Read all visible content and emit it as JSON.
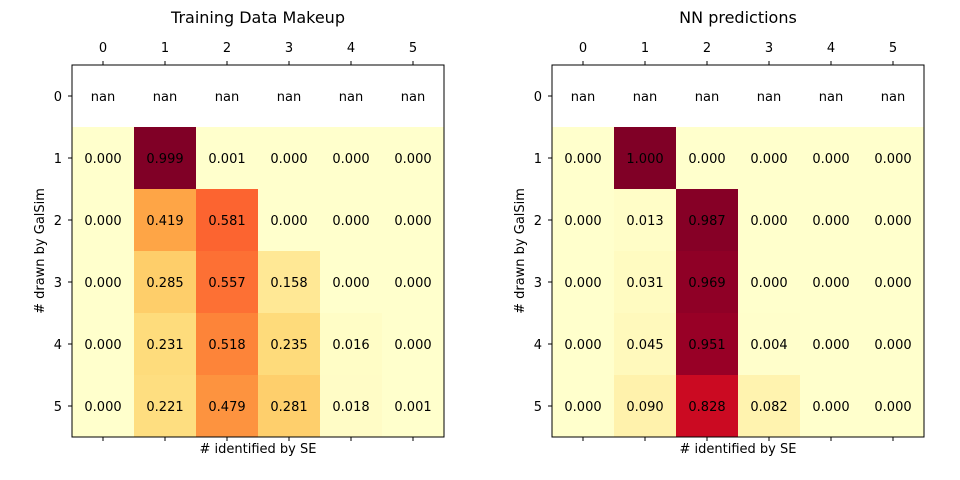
{
  "chart_data": [
    {
      "type": "heatmap",
      "title": "Training Data Makeup",
      "xlabel": "# identified by SE",
      "ylabel": "# drawn by GalSim",
      "x_ticks": [
        "0",
        "1",
        "2",
        "3",
        "4",
        "5"
      ],
      "y_ticks": [
        "0",
        "1",
        "2",
        "3",
        "4",
        "5"
      ],
      "colormap": "YlOrRd",
      "vmin": 0,
      "vmax": 1,
      "values": [
        [
          null,
          null,
          null,
          null,
          null,
          null
        ],
        [
          0.0,
          0.999,
          0.001,
          0.0,
          0.0,
          0.0
        ],
        [
          0.0,
          0.419,
          0.581,
          0.0,
          0.0,
          0.0
        ],
        [
          0.0,
          0.285,
          0.557,
          0.158,
          0.0,
          0.0
        ],
        [
          0.0,
          0.231,
          0.518,
          0.235,
          0.016,
          0.0
        ],
        [
          0.0,
          0.221,
          0.479,
          0.281,
          0.018,
          0.001
        ]
      ],
      "labels": [
        [
          "nan",
          "nan",
          "nan",
          "nan",
          "nan",
          "nan"
        ],
        [
          "0.000",
          "0.999",
          "0.001",
          "0.000",
          "0.000",
          "0.000"
        ],
        [
          "0.000",
          "0.419",
          "0.581",
          "0.000",
          "0.000",
          "0.000"
        ],
        [
          "0.000",
          "0.285",
          "0.557",
          "0.158",
          "0.000",
          "0.000"
        ],
        [
          "0.000",
          "0.231",
          "0.518",
          "0.235",
          "0.016",
          "0.000"
        ],
        [
          "0.000",
          "0.221",
          "0.479",
          "0.281",
          "0.018",
          "0.001"
        ]
      ]
    },
    {
      "type": "heatmap",
      "title": "NN predictions",
      "xlabel": "# identified by SE",
      "ylabel": "# drawn by GalSim",
      "x_ticks": [
        "0",
        "1",
        "2",
        "3",
        "4",
        "5"
      ],
      "y_ticks": [
        "0",
        "1",
        "2",
        "3",
        "4",
        "5"
      ],
      "colormap": "YlOrRd",
      "vmin": 0,
      "vmax": 1,
      "values": [
        [
          null,
          null,
          null,
          null,
          null,
          null
        ],
        [
          0.0,
          1.0,
          0.0,
          0.0,
          0.0,
          0.0
        ],
        [
          0.0,
          0.013,
          0.987,
          0.0,
          0.0,
          0.0
        ],
        [
          0.0,
          0.031,
          0.969,
          0.0,
          0.0,
          0.0
        ],
        [
          0.0,
          0.045,
          0.951,
          0.004,
          0.0,
          0.0
        ],
        [
          0.0,
          0.09,
          0.828,
          0.082,
          0.0,
          0.0
        ]
      ],
      "labels": [
        [
          "nan",
          "nan",
          "nan",
          "nan",
          "nan",
          "nan"
        ],
        [
          "0.000",
          "1.000",
          "0.000",
          "0.000",
          "0.000",
          "0.000"
        ],
        [
          "0.000",
          "0.013",
          "0.987",
          "0.000",
          "0.000",
          "0.000"
        ],
        [
          "0.000",
          "0.031",
          "0.969",
          "0.000",
          "0.000",
          "0.000"
        ],
        [
          "0.000",
          "0.045",
          "0.951",
          "0.004",
          "0.000",
          "0.000"
        ],
        [
          "0.000",
          "0.090",
          "0.828",
          "0.082",
          "0.000",
          "0.000"
        ]
      ]
    }
  ]
}
